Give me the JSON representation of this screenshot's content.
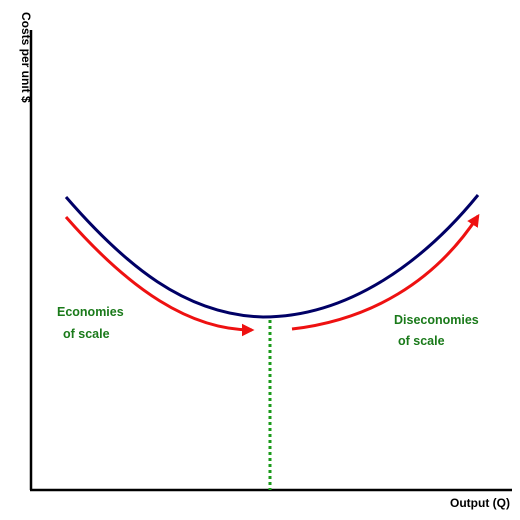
{
  "axes": {
    "y_label": "Costs per unit $",
    "x_label": "Output (Q)"
  },
  "annotations": {
    "economies_line1": "Economies",
    "economies_line2": "of scale",
    "diseconomies_line1": "Diseconomies",
    "diseconomies_line2": "of scale"
  },
  "colors": {
    "curve": "#000066",
    "arrows": "#ee1111",
    "annotation_text": "#1a7a1a",
    "minimum_marker": "#1a9a1a",
    "axes": "#000000"
  }
}
